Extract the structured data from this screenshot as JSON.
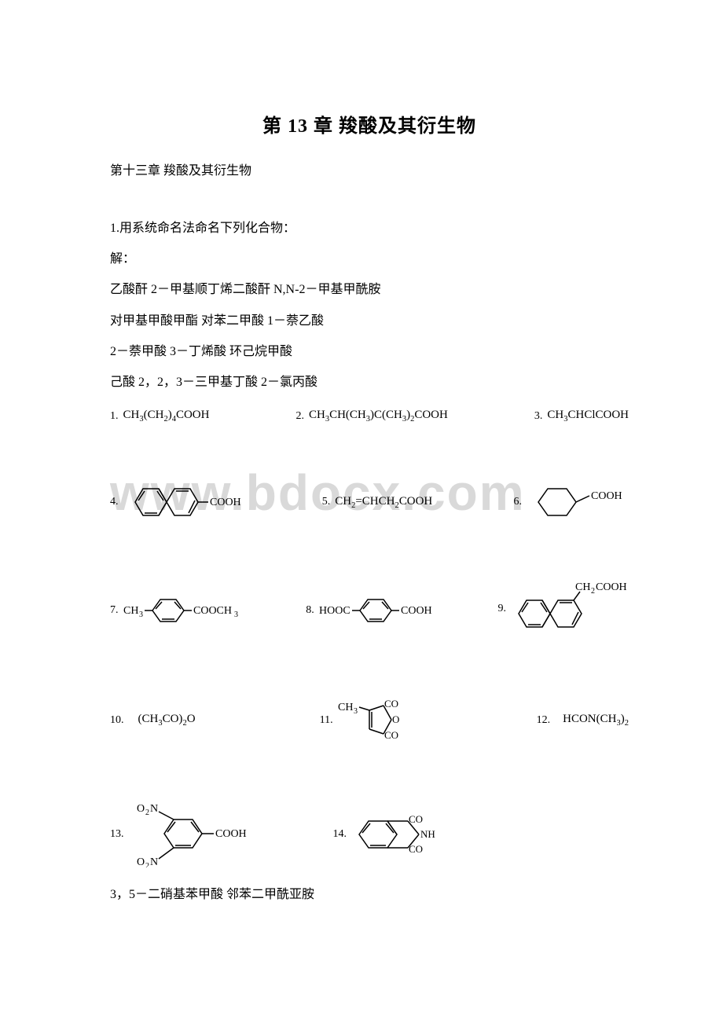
{
  "title": "第 13 章 羧酸及其衍生物",
  "subtitle": "第十三章 羧酸及其衍生物",
  "q1_header": "1.用系统命名法命名下列化合物：",
  "q1_answer_label": "解：",
  "names_line1": "乙酸酐 2－甲基顺丁烯二酸酐 N,N-2－甲基甲酰胺",
  "names_line2": "对甲基甲酸甲酯 对苯二甲酸 1－萘乙酸",
  "names_line3": "2－萘甲酸 3－丁烯酸 环己烷甲酸",
  "names_line4": "己酸 2，2，3－三甲基丁酸 2－氯丙酸",
  "watermark_text": "www.bdocx.com",
  "final_line": "3，5－二硝基苯甲酸 邻苯二甲酰亚胺",
  "figures": {
    "row1": {
      "f1": {
        "num": "1.",
        "formula_html": "CH<sub>3</sub>(CH<sub>2</sub>)<sub>4</sub>COOH"
      },
      "f2": {
        "num": "2.",
        "formula_html": "CH<sub>3</sub>CH(CH<sub>3</sub>)C(CH<sub>3</sub>)<sub>2</sub>COOH"
      },
      "f3": {
        "num": "3.",
        "formula_html": "CH<sub>3</sub>CHClCOOH"
      }
    },
    "row2": {
      "f4": {
        "num": "4.",
        "type": "naphthalene-cooh"
      },
      "f5": {
        "num": "5.",
        "formula_html": "CH<sub>2</sub>=CHCH<sub>2</sub>COOH"
      },
      "f6": {
        "num": "6.",
        "type": "cyclohexane-cooh"
      }
    },
    "row3": {
      "f7": {
        "num": "7.",
        "type": "p-methyl-benzoate",
        "left_label": "CH<sub>3</sub>",
        "right_label": "COOCH<sub>3</sub>"
      },
      "f8": {
        "num": "8.",
        "type": "terephthalic",
        "left_label": "HOOC",
        "right_label": "COOH"
      },
      "f9": {
        "num": "9.",
        "type": "naphthalene-ch2cooh",
        "label": "CH<sub>2</sub>COOH"
      }
    },
    "row4": {
      "f10": {
        "num": "10.",
        "formula_html": "(CH<sub>3</sub>CO)<sub>2</sub>O"
      },
      "f11": {
        "num": "11.",
        "type": "methyl-maleic-anhydride",
        "label": "CH<sub>3</sub>"
      },
      "f12": {
        "num": "12.",
        "formula_html": "HCON(CH<sub>3</sub>)<sub>2</sub>"
      }
    },
    "row5": {
      "f13": {
        "num": "13.",
        "type": "dinitro-benzoic",
        "top_label": "O<sub>2</sub>N",
        "bottom_label": "O<sub>2</sub>N",
        "right_label": "COOH"
      },
      "f14": {
        "num": "14.",
        "type": "phthalimide"
      }
    }
  },
  "colors": {
    "text": "#000000",
    "background": "#ffffff",
    "watermark": "#d9d9d9",
    "stroke": "#000000"
  }
}
